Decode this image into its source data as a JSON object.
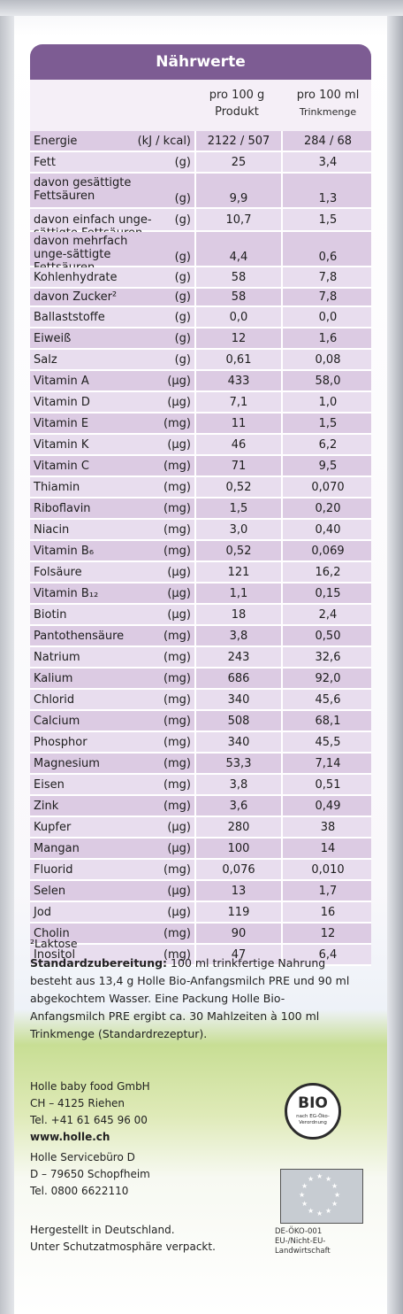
{
  "table": {
    "title": "Nährwerte",
    "col1_line1": "pro 100 g",
    "col1_line2": "Produkt",
    "col2_line1": "pro 100 ml",
    "col2_line2": "Trinkmenge",
    "rows": [
      {
        "name": "Energie",
        "unit": "(kJ / kcal)",
        "v1": "2122 / 507",
        "v2": "284 / 68"
      },
      {
        "name": "Fett",
        "unit": "(g)",
        "v1": "25",
        "v2": "3,4"
      },
      {
        "name": "davon gesättigte Fettsäuren",
        "unit": "(g)",
        "v1": "9,9",
        "v2": "1,3"
      },
      {
        "name": "davon einfach unge-sättigte Fettsäuren",
        "unit": "(g)",
        "v1": "10,7",
        "v2": "1,5"
      },
      {
        "name": "davon mehrfach unge-sättigte Fettsäuren",
        "unit": "(g)",
        "v1": "4,4",
        "v2": "0,6"
      },
      {
        "name": "Kohlenhydrate",
        "unit": "(g)",
        "v1": "58",
        "v2": "7,8"
      },
      {
        "name": "davon Zucker²",
        "unit": "(g)",
        "v1": "58",
        "v2": "7,8"
      },
      {
        "name": "Ballaststoffe",
        "unit": "(g)",
        "v1": "0,0",
        "v2": "0,0"
      },
      {
        "name": "Eiweiß",
        "unit": "(g)",
        "v1": "12",
        "v2": "1,6"
      },
      {
        "name": "Salz",
        "unit": "(g)",
        "v1": "0,61",
        "v2": "0,08"
      },
      {
        "name": "Vitamin A",
        "unit": "(µg)",
        "v1": "433",
        "v2": "58,0"
      },
      {
        "name": "Vitamin D",
        "unit": "(µg)",
        "v1": "7,1",
        "v2": "1,0"
      },
      {
        "name": "Vitamin E",
        "unit": "(mg)",
        "v1": "11",
        "v2": "1,5"
      },
      {
        "name": "Vitamin K",
        "unit": "(µg)",
        "v1": "46",
        "v2": "6,2"
      },
      {
        "name": "Vitamin C",
        "unit": "(mg)",
        "v1": "71",
        "v2": "9,5"
      },
      {
        "name": "Thiamin",
        "unit": "(mg)",
        "v1": "0,52",
        "v2": "0,070"
      },
      {
        "name": "Riboflavin",
        "unit": "(mg)",
        "v1": "1,5",
        "v2": "0,20"
      },
      {
        "name": "Niacin",
        "unit": "(mg)",
        "v1": "3,0",
        "v2": "0,40"
      },
      {
        "name": "Vitamin B₆",
        "unit": "(mg)",
        "v1": "0,52",
        "v2": "0,069"
      },
      {
        "name": "Folsäure",
        "unit": "(µg)",
        "v1": "121",
        "v2": "16,2"
      },
      {
        "name": "Vitamin B₁₂",
        "unit": "(µg)",
        "v1": "1,1",
        "v2": "0,15"
      },
      {
        "name": "Biotin",
        "unit": "(µg)",
        "v1": "18",
        "v2": "2,4"
      },
      {
        "name": "Pantothensäure",
        "unit": "(mg)",
        "v1": "3,8",
        "v2": "0,50"
      },
      {
        "name": "Natrium",
        "unit": "(mg)",
        "v1": "243",
        "v2": "32,6"
      },
      {
        "name": "Kalium",
        "unit": "(mg)",
        "v1": "686",
        "v2": "92,0"
      },
      {
        "name": "Chlorid",
        "unit": "(mg)",
        "v1": "340",
        "v2": "45,6"
      },
      {
        "name": "Calcium",
        "unit": "(mg)",
        "v1": "508",
        "v2": "68,1"
      },
      {
        "name": "Phosphor",
        "unit": "(mg)",
        "v1": "340",
        "v2": "45,5"
      },
      {
        "name": "Magnesium",
        "unit": "(mg)",
        "v1": "53,3",
        "v2": "7,14"
      },
      {
        "name": "Eisen",
        "unit": "(mg)",
        "v1": "3,8",
        "v2": "0,51"
      },
      {
        "name": "Zink",
        "unit": "(mg)",
        "v1": "3,6",
        "v2": "0,49"
      },
      {
        "name": "Kupfer",
        "unit": "(µg)",
        "v1": "280",
        "v2": "38"
      },
      {
        "name": "Mangan",
        "unit": "(µg)",
        "v1": "100",
        "v2": "14"
      },
      {
        "name": "Fluorid",
        "unit": "(mg)",
        "v1": "0,076",
        "v2": "0,010"
      },
      {
        "name": "Selen",
        "unit": "(µg)",
        "v1": "13",
        "v2": "1,7"
      },
      {
        "name": "Jod",
        "unit": "(µg)",
        "v1": "119",
        "v2": "16"
      },
      {
        "name": "Cholin",
        "unit": "(mg)",
        "v1": "90",
        "v2": "12"
      },
      {
        "name": "Inositol",
        "unit": "(mg)",
        "v1": "47",
        "v2": "6,4"
      }
    ]
  },
  "footnote": "²Laktose",
  "standard": {
    "label": "Standardzubereitung:",
    "text": " 100 ml trinkfertige Nahrung besteht aus 13,4 g Holle Bio-Anfangsmilch PRE und 90 ml abgekochtem Wasser. Eine Packung Holle Bio-Anfangsmilch PRE ergibt ca. 30 Mahlzeiten à 100 ml Trinkmenge (Standardrezeptur)."
  },
  "company": {
    "line1": "Holle baby food GmbH",
    "line2": "CH – 4125 Riehen",
    "line3": "Tel. +41 61 645 96 00",
    "line4": "www.holle.ch"
  },
  "service": {
    "line1": "Holle Servicebüro D",
    "line2": "D – 79650 Schopfheim",
    "line3": "Tel. 0800 6622110"
  },
  "made": {
    "line1": "Hergestellt in Deutschland.",
    "line2": "Unter Schutzatmosphäre verpackt."
  },
  "bio_logo": {
    "text": "BIO",
    "sub": "nach EG-Öko-Verordnung"
  },
  "eu_code": {
    "line1": "DE-ÖKO-001",
    "line2": "EU-/Nicht-EU-",
    "line3": "Landwirtschaft"
  },
  "colors": {
    "header": "#7d5c93",
    "row_dark": "#dccbe3",
    "row_light": "#e8ddee"
  }
}
